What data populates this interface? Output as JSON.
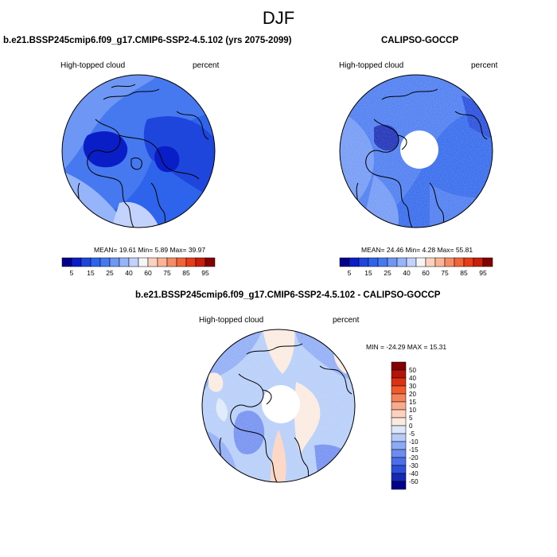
{
  "season": "DJF",
  "chart_data": [
    {
      "type": "heatmap",
      "projection": "north-polar-stereographic",
      "title": "b.e21.BSSP245cmip6.f09_g17.CMIP6-SSP2-4.5.102 (yrs 2075-2099)",
      "left_label": "High-topped cloud",
      "right_label": "percent",
      "stats": {
        "mean": 19.61,
        "min": 5.89,
        "max": 39.97
      },
      "stats_text": "MEAN=  19.61  Min=   5.89  Max=  39.97",
      "colorbar_levels": [
        5,
        10,
        15,
        20,
        25,
        30,
        40,
        50,
        60,
        70,
        75,
        80,
        85,
        90,
        95
      ],
      "colorbar_tick_labels": [
        "5",
        "15",
        "25",
        "40",
        "60",
        "75",
        "85",
        "95"
      ],
      "colorbar_colors": [
        "#00008c",
        "#0a1ec8",
        "#1e46dc",
        "#2d64eb",
        "#4678f0",
        "#6e96f5",
        "#96b4fa",
        "#c3d2fc",
        "#f5f5f5",
        "#fcd2be",
        "#fab496",
        "#f58c64",
        "#f06437",
        "#e63c19",
        "#c81e0a",
        "#820000"
      ]
    },
    {
      "type": "heatmap",
      "projection": "north-polar-stereographic",
      "title": "CALIPSO-GOCCP",
      "left_label": "High-topped cloud",
      "right_label": "percent",
      "stats": {
        "mean": 24.46,
        "min": 4.28,
        "max": 55.81
      },
      "stats_text": "MEAN=  24.46  Min=   4.28  Max=  55.81",
      "colorbar_levels": [
        5,
        10,
        15,
        20,
        25,
        30,
        40,
        50,
        60,
        70,
        75,
        80,
        85,
        90,
        95
      ],
      "colorbar_tick_labels": [
        "5",
        "15",
        "25",
        "40",
        "60",
        "75",
        "85",
        "95"
      ],
      "colorbar_colors": [
        "#00008c",
        "#0a1ec8",
        "#1e46dc",
        "#2d64eb",
        "#4678f0",
        "#6e96f5",
        "#96b4fa",
        "#c3d2fc",
        "#f5f5f5",
        "#fcd2be",
        "#fab496",
        "#f58c64",
        "#f06437",
        "#e63c19",
        "#c81e0a",
        "#820000"
      ]
    },
    {
      "type": "heatmap",
      "projection": "north-polar-stereographic",
      "title": "b.e21.BSSP245cmip6.f09_g17.CMIP6-SSP2-4.5.102 - CALIPSO-GOCCP",
      "left_label": "High-topped cloud",
      "right_label": "percent",
      "stats": {
        "min": -24.29,
        "max": 15.31
      },
      "stats_text": "MIN = -24.29  MAX =  15.31",
      "colorbar_levels": [
        -50,
        -40,
        -30,
        -20,
        -15,
        -10,
        -5,
        0,
        5,
        10,
        15,
        20,
        30,
        40,
        50
      ],
      "colorbar_tick_labels": [
        "50",
        "40",
        "30",
        "20",
        "15",
        "10",
        "5",
        "0",
        "-5",
        "-10",
        "-15",
        "-20",
        "-30",
        "-40",
        "-50"
      ],
      "colorbar_colors": [
        "#820000",
        "#b4140a",
        "#dc3214",
        "#f05a2d",
        "#f5825a",
        "#fcaa8c",
        "#fcd2be",
        "#faeadf",
        "#dce8fa",
        "#b4ccf8",
        "#8caaf5",
        "#6e8cf0",
        "#4b6eeb",
        "#2d50dc",
        "#1428b4",
        "#00008c"
      ]
    }
  ]
}
